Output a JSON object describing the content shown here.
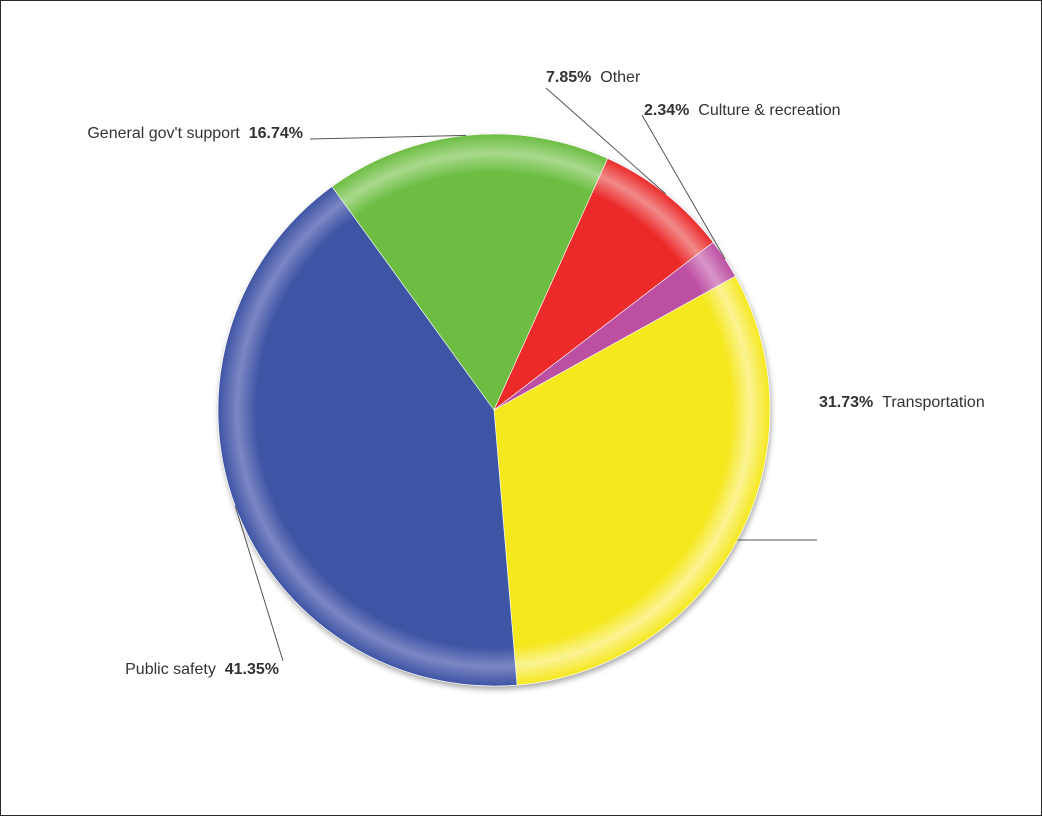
{
  "chart_data": {
    "type": "pie",
    "slices": [
      {
        "label": "Transportation",
        "percent": "31.73%",
        "value": 31.73,
        "color": "#f5e81f",
        "rim": "#fbf393"
      },
      {
        "label": "Public safety",
        "percent": "41.35%",
        "value": 41.35,
        "color": "#3e54a4",
        "rim": "#7b86c4"
      },
      {
        "label": "General gov't support",
        "percent": "16.74%",
        "value": 16.74,
        "color": "#6cbd43",
        "rim": "#a9d98c"
      },
      {
        "label": "Other",
        "percent": "7.85%",
        "value": 7.85,
        "color": "#ec2a2a",
        "rim": "#f28a8a"
      },
      {
        "label": "Culture & recreation",
        "percent": "2.34%",
        "value": 2.34,
        "color": "#bd4fa3",
        "rim": "#d995c8"
      }
    ]
  }
}
